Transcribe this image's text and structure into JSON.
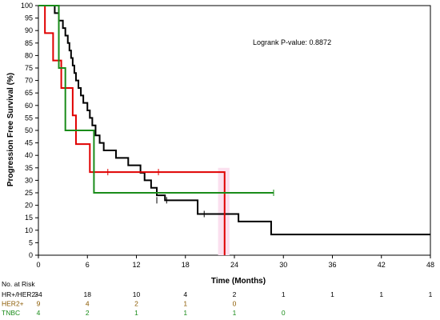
{
  "chart_data": {
    "type": "line",
    "subtype": "kaplan-meier",
    "title": "",
    "xlabel": "Time (Months)",
    "ylabel": "Progression Free Survival (%)",
    "xlim": [
      0,
      48
    ],
    "ylim": [
      0,
      100
    ],
    "x_ticks": [
      0,
      6,
      12,
      18,
      24,
      30,
      36,
      42,
      48
    ],
    "y_ticks": [
      0,
      5,
      10,
      15,
      20,
      25,
      30,
      35,
      40,
      45,
      50,
      55,
      60,
      65,
      70,
      75,
      80,
      85,
      90,
      95,
      100
    ],
    "y_tick_labels": [
      "0",
      "5",
      "10",
      "15",
      "20",
      "25",
      "30",
      "35",
      "40",
      "45",
      "50",
      "55",
      "60",
      "65",
      "70",
      "75",
      "80",
      "85",
      "90",
      "95",
      "100"
    ],
    "grid": false,
    "annotation": "Logrank P-value: 0.8872",
    "series": [
      {
        "color": "#000000",
        "steps": [
          [
            0,
            100
          ],
          [
            2.0,
            97
          ],
          [
            2.5,
            94
          ],
          [
            3.0,
            91
          ],
          [
            3.3,
            88
          ],
          [
            3.6,
            85
          ],
          [
            3.8,
            82
          ],
          [
            4.0,
            79
          ],
          [
            4.2,
            76
          ],
          [
            4.4,
            73
          ],
          [
            4.6,
            70
          ],
          [
            4.9,
            67
          ],
          [
            5.2,
            64
          ],
          [
            5.5,
            61
          ],
          [
            6.0,
            58
          ],
          [
            6.3,
            55
          ],
          [
            6.6,
            52
          ],
          [
            7.0,
            48
          ],
          [
            7.5,
            45
          ],
          [
            8.0,
            42
          ],
          [
            9.5,
            39
          ],
          [
            11.0,
            36
          ],
          [
            12.5,
            33
          ],
          [
            13.0,
            30
          ],
          [
            13.8,
            27
          ],
          [
            14.5,
            24
          ],
          [
            15.5,
            22
          ],
          [
            19.5,
            16.5
          ],
          [
            24.5,
            13.5
          ],
          [
            28.5,
            8.3
          ],
          [
            48,
            8.3
          ]
        ],
        "censored": [
          [
            14.5,
            22
          ],
          [
            15.7,
            22
          ],
          [
            20.3,
            16.5
          ],
          [
            48,
            8.3
          ]
        ]
      },
      {
        "color": "#e00000",
        "steps": [
          [
            0,
            100
          ],
          [
            0.8,
            89
          ],
          [
            1.8,
            78
          ],
          [
            2.8,
            67
          ],
          [
            4.2,
            56
          ],
          [
            4.6,
            44.5
          ],
          [
            6.3,
            33.3
          ],
          [
            22.8,
            0
          ]
        ],
        "end": 22.8,
        "censored": [
          [
            8.5,
            33.3
          ],
          [
            14.7,
            33.3
          ]
        ]
      },
      {
        "color": "#1a8c1a",
        "steps": [
          [
            0,
            100
          ],
          [
            2.5,
            75
          ],
          [
            3.3,
            50
          ],
          [
            6.8,
            25
          ],
          [
            28.8,
            25
          ]
        ],
        "censored": [
          [
            28.8,
            25
          ]
        ]
      }
    ],
    "shade": {
      "x": [
        22.0,
        23.4
      ],
      "y": [
        0,
        35
      ],
      "color": "#fbe0ef"
    },
    "risk_table": {
      "title": "No. at Risk",
      "times": [
        0,
        6,
        12,
        18,
        24,
        30,
        36,
        42,
        48
      ],
      "rows": [
        {
          "label": "HR+/HER2-",
          "color": "#000000",
          "counts": [
            "34",
            "18",
            "10",
            "4",
            "2",
            "1",
            "1",
            "1",
            "1"
          ]
        },
        {
          "label": "HER2+",
          "color": "#8b5a00",
          "counts": [
            "9",
            "4",
            "2",
            "1",
            "0",
            "",
            "",
            "",
            ""
          ]
        },
        {
          "label": "TNBC",
          "color": "#1a8c1a",
          "counts": [
            "4",
            "2",
            "1",
            "1",
            "1",
            "0",
            "",
            "",
            ""
          ]
        }
      ]
    }
  }
}
